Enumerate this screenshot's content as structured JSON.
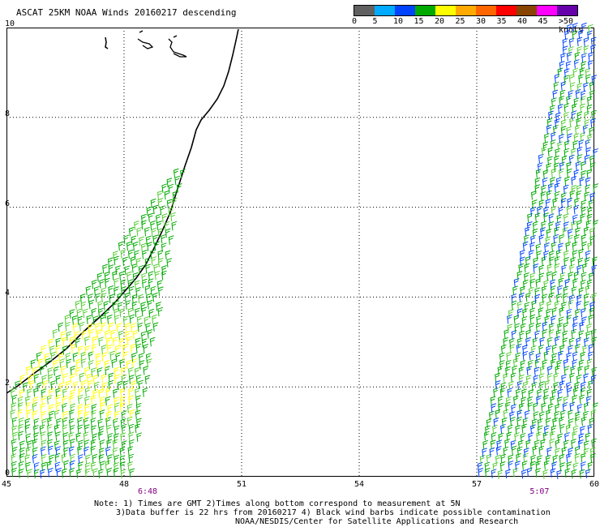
{
  "title": "ASCAT 25KM NOAA Winds 20160217 descending",
  "legend": {
    "labels": [
      "0",
      "5",
      "10",
      "15",
      "20",
      "25",
      "30",
      "35",
      "40",
      "45",
      ">50 knots"
    ],
    "colors": [
      "#606060",
      "#00aaff",
      "#0044ff",
      "#00aa00",
      "#ffff00",
      "#ffaa00",
      "#ff6600",
      "#ff0000",
      "#884400",
      "#ff00ff",
      "#6600aa"
    ]
  },
  "chart_data": {
    "type": "map",
    "lon_ticks": [
      45,
      48,
      51,
      54,
      57,
      60
    ],
    "lat_ticks": [
      0,
      2,
      4,
      6,
      8,
      10
    ],
    "lon_range": [
      45,
      60
    ],
    "lat_range": [
      0,
      10
    ],
    "grid": true,
    "pass_times": [
      {
        "label": "6:48",
        "lon": 48.6
      },
      {
        "label": "5:07",
        "lon": 58.6
      }
    ]
  },
  "ytick_labels": [
    "0",
    "2",
    "4",
    "6",
    "8",
    "10"
  ],
  "xtick_labels": [
    "45",
    "48",
    "51",
    "54",
    "57",
    "60"
  ],
  "notes": {
    "line1": "Note: 1) Times are GMT 2)Times along bottom correspond to measurement at 5N",
    "line2": "3)Data buffer is 22 hrs from 20160217 4) Black wind barbs indicate possible contamination",
    "line3": "NOAA/NESDIS/Center for Satellite Applications and Research"
  }
}
